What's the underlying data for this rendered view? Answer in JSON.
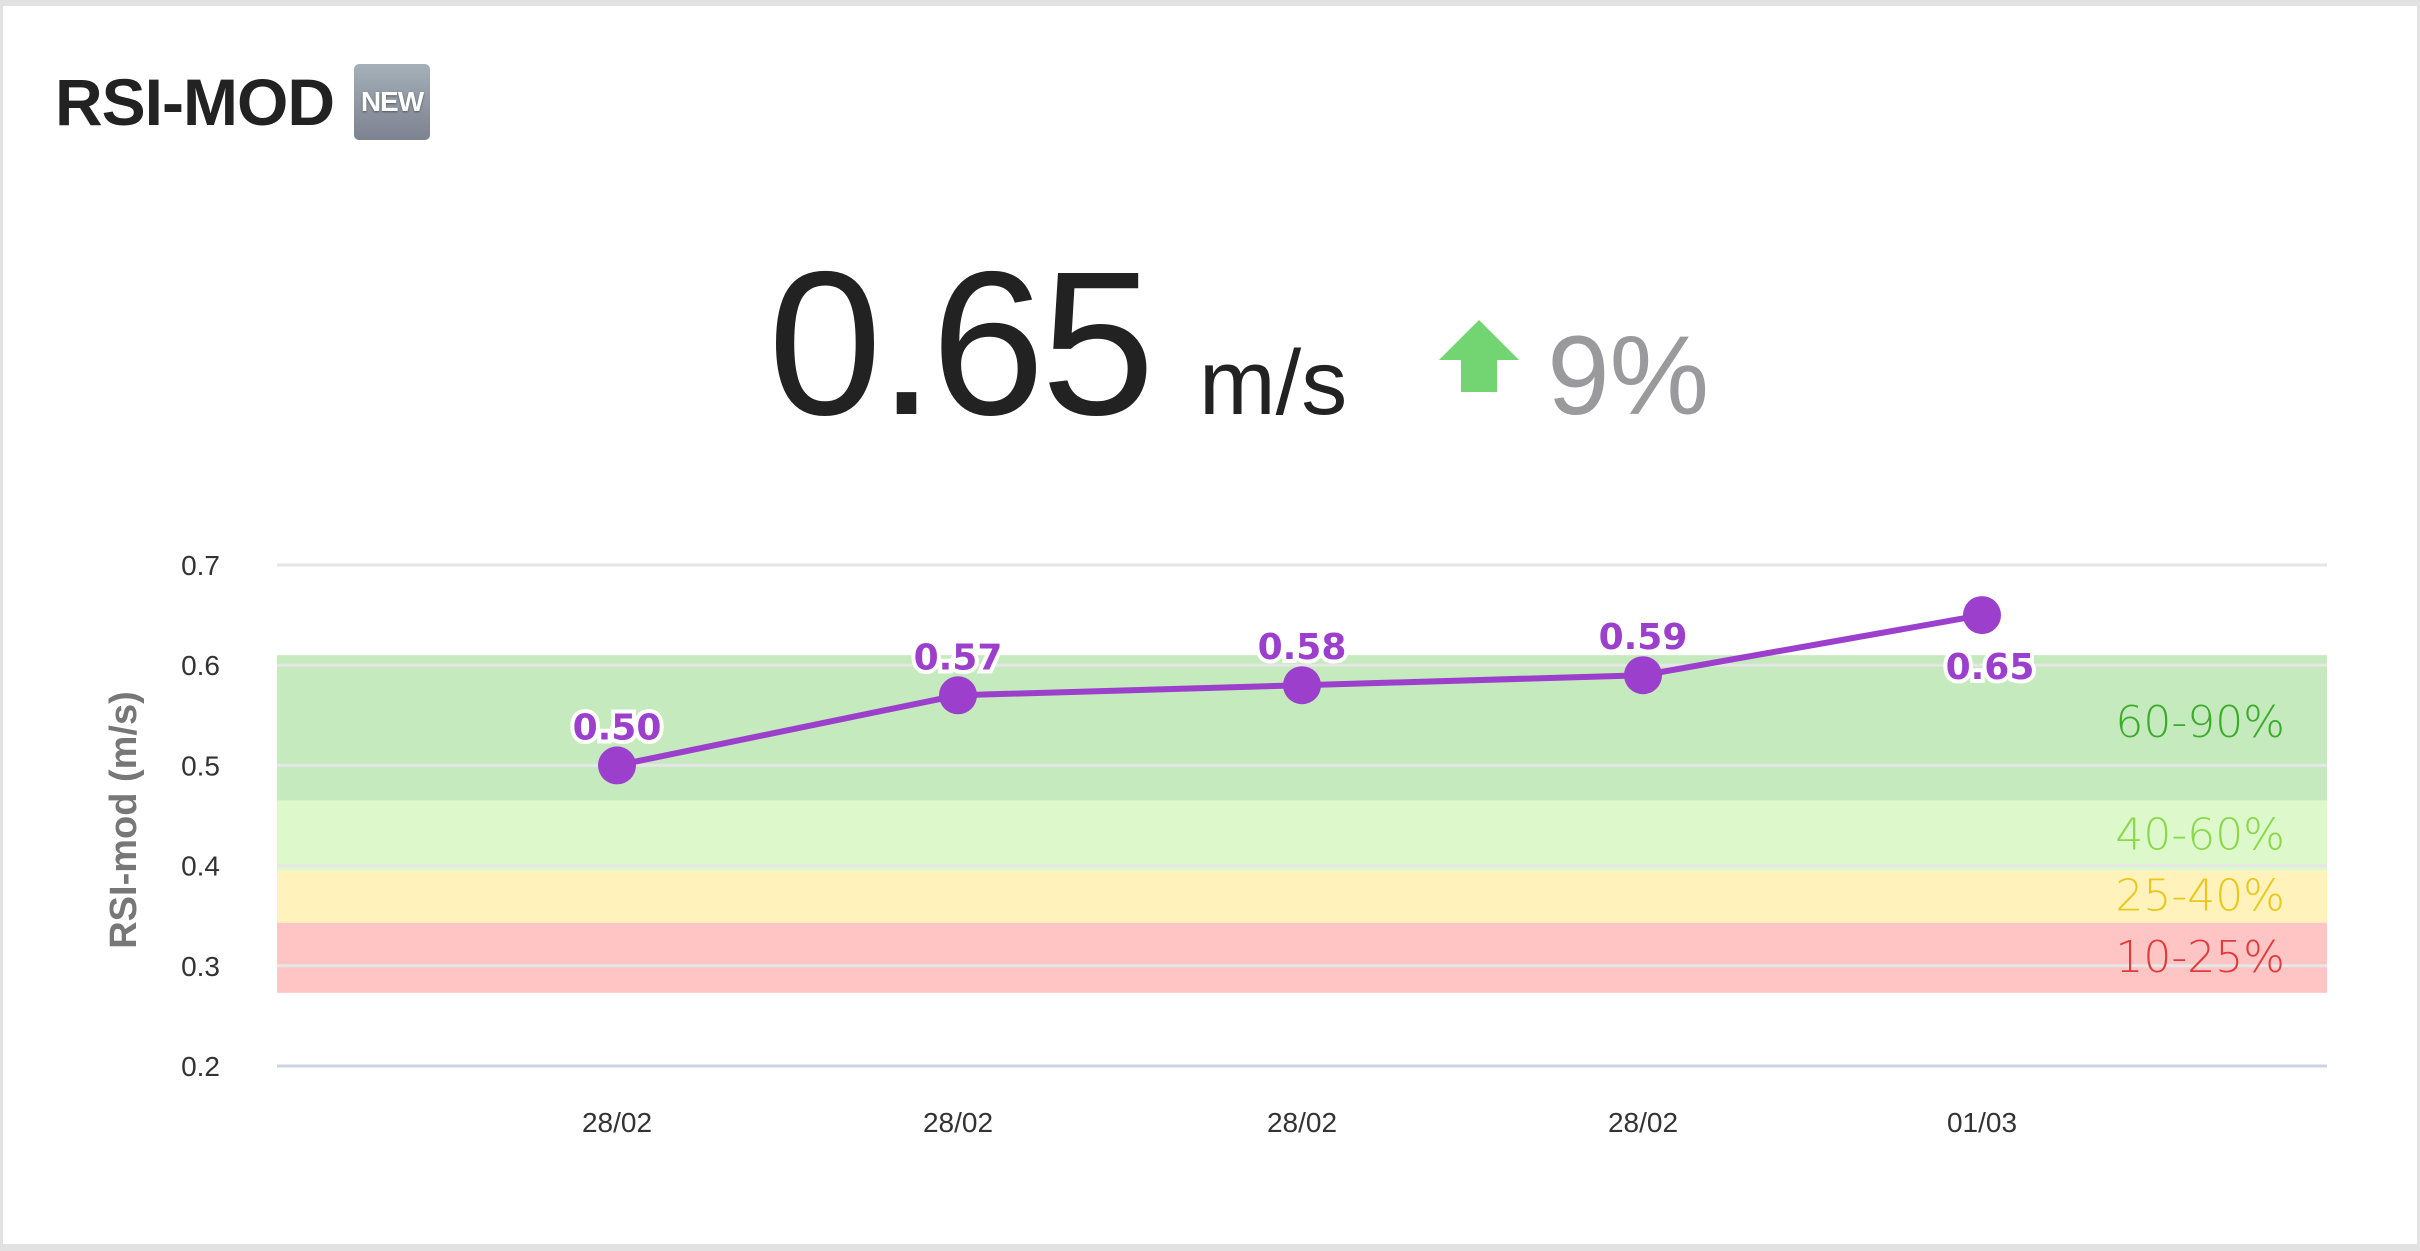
{
  "header": {
    "title": "RSI-MOD",
    "badge": "NEW"
  },
  "metric": {
    "value": "0.65",
    "unit": "m/s",
    "change": "9%",
    "trend_icon": "arrow-up-icon",
    "trend_color": "#72d572"
  },
  "chart_data": {
    "type": "line",
    "ylabel": "RSI-mod (m/s)",
    "ylim": [
      0.2,
      0.7
    ],
    "yticks": [
      "0.7",
      "0.6",
      "0.5",
      "0.4",
      "0.3",
      "0.2"
    ],
    "categories": [
      "28/02",
      "28/02",
      "28/02",
      "28/02",
      "01/03"
    ],
    "series": [
      {
        "name": "RSI-mod",
        "color": "#9b3fcc",
        "values": [
          0.5,
          0.57,
          0.58,
          0.59,
          0.65
        ],
        "labels": [
          "0.50",
          "0.57",
          "0.58",
          "0.59",
          "0.65"
        ]
      }
    ],
    "bands": [
      {
        "label": "60-90%",
        "from": 0.465,
        "to": 0.61,
        "fill": "#c5eabd",
        "text": "#3aab2a"
      },
      {
        "label": "40-60%",
        "from": 0.395,
        "to": 0.465,
        "fill": "#ddf9cc",
        "text": "#8ad84a"
      },
      {
        "label": "25-40%",
        "from": 0.343,
        "to": 0.395,
        "fill": "#fff3bb",
        "text": "#e8c81e"
      },
      {
        "label": "10-25%",
        "from": 0.273,
        "to": 0.343,
        "fill": "#ffc5c5",
        "text": "#e23a3a"
      }
    ],
    "grid": true
  }
}
